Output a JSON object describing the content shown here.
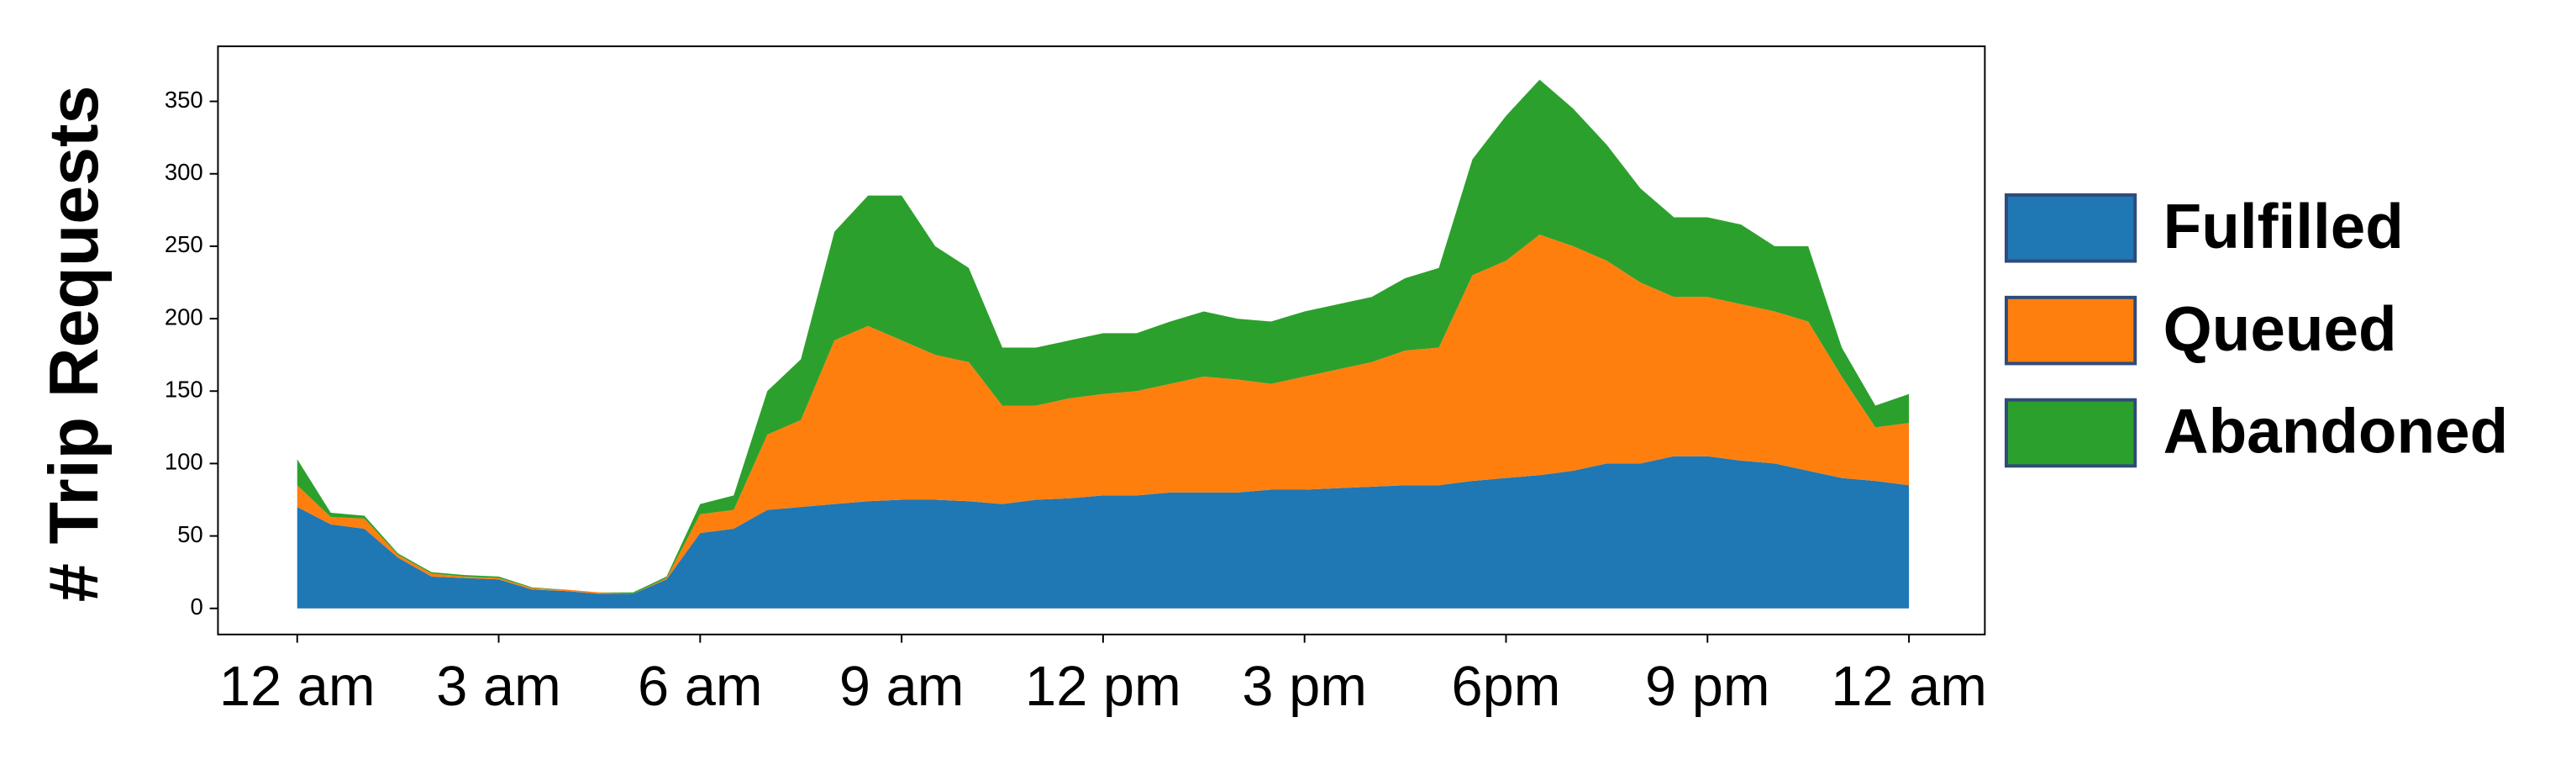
{
  "chart_data": {
    "type": "stackedarea",
    "ylabel": "# Trip Requests",
    "x": [
      0,
      0.5,
      1,
      1.5,
      2,
      2.5,
      3,
      3.5,
      4,
      4.5,
      5,
      5.5,
      6,
      6.5,
      7,
      7.5,
      8,
      8.5,
      9,
      9.5,
      10,
      10.5,
      11,
      11.5,
      12,
      12.5,
      13,
      13.5,
      14,
      14.5,
      15,
      15.5,
      16,
      16.5,
      17,
      17.5,
      18,
      18.5,
      19,
      19.5,
      20,
      20.5,
      21,
      21.5,
      22,
      22.5,
      23,
      23.5,
      24
    ],
    "series": [
      {
        "name": "Fulfilled",
        "color": "#1f77b4",
        "values": [
          70,
          58,
          55,
          35,
          22,
          21,
          20,
          13,
          12,
          10,
          10,
          20,
          52,
          55,
          68,
          70,
          72,
          74,
          75,
          75,
          74,
          72,
          75,
          76,
          78,
          78,
          80,
          80,
          80,
          82,
          82,
          83,
          84,
          85,
          85,
          88,
          90,
          92,
          95,
          100,
          100,
          105,
          105,
          102,
          100,
          95,
          90,
          88,
          85
        ]
      },
      {
        "name": "Queued",
        "color": "#ff7f0e",
        "values": [
          15,
          5,
          7,
          2,
          2,
          1,
          1,
          1,
          1,
          1,
          0,
          1,
          13,
          13,
          52,
          60,
          113,
          121,
          110,
          100,
          96,
          68,
          65,
          69,
          70,
          72,
          75,
          80,
          78,
          73,
          78,
          82,
          86,
          93,
          95,
          142,
          150,
          166,
          155,
          140,
          125,
          110,
          110,
          108,
          105,
          103,
          70,
          37,
          43
        ]
      },
      {
        "name": "Abandoned",
        "color": "#2ca02c",
        "values": [
          18,
          3,
          2,
          1,
          1,
          1,
          1,
          0.5,
          0,
          0,
          1,
          1,
          7,
          10,
          30,
          42,
          75,
          90,
          100,
          75,
          65,
          40,
          40,
          40,
          42,
          40,
          43,
          45,
          42,
          43,
          45,
          45,
          45,
          50,
          55,
          80,
          100,
          107,
          95,
          80,
          65,
          55,
          55,
          55,
          45,
          52,
          20,
          15,
          20
        ]
      }
    ],
    "xlim": [
      -1.18,
      25.13
    ],
    "xticks": [
      {
        "value": 0,
        "label": "12 am"
      },
      {
        "value": 3,
        "label": "3 am"
      },
      {
        "value": 6,
        "label": "6 am"
      },
      {
        "value": 9,
        "label": "9 am"
      },
      {
        "value": 12,
        "label": "12 pm"
      },
      {
        "value": 15,
        "label": "3 pm"
      },
      {
        "value": 18,
        "label": "6pm"
      },
      {
        "value": 21,
        "label": "9 pm"
      },
      {
        "value": 24,
        "label": "12 am"
      }
    ],
    "ylim": [
      -18,
      388
    ],
    "yticks": [
      0,
      50,
      100,
      150,
      200,
      250,
      300,
      350
    ],
    "grid": false
  }
}
